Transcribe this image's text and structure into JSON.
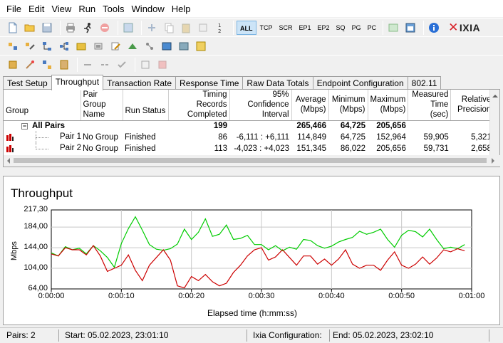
{
  "menu": [
    "File",
    "Edit",
    "View",
    "Run",
    "Tools",
    "Window",
    "Help"
  ],
  "toolbar_protocols": [
    "ALL",
    "TCP",
    "SCR",
    "EP1",
    "EP2",
    "SQ",
    "PG",
    "PC"
  ],
  "toolbar_icons_row1": [
    "new-file-icon",
    "open-folder-icon",
    "save-icon",
    "print-icon",
    "run-icon",
    "stop-icon",
    "refresh-icon",
    "add-pair-icon",
    "copy-icon",
    "paste-icon",
    "delete-icon",
    "numbering-icon"
  ],
  "toolbar_icons_row2": [
    "pair-group-icon",
    "edit-pair-icon",
    "network-icon",
    "hierarchy-icon",
    "chart-icon",
    "script-icon",
    "edit-script-icon",
    "endpoint-icon",
    "topology-icon",
    "filter-icon",
    "window-icon",
    "export-icon"
  ],
  "brand": "IXIA",
  "tabs": [
    "Test Setup",
    "Throughput",
    "Transaction Rate",
    "Response Time",
    "Raw Data Totals",
    "Endpoint Configuration",
    "802.11"
  ],
  "grid": {
    "headers": [
      "Group",
      "Pair Group Name",
      "Run Status",
      "Timing Records Completed",
      "95% Confidence Interval",
      "Average (Mbps)",
      "Minimum (Mbps)",
      "Maximum (Mbps)",
      "Measured Time (sec)",
      "Relative Precision"
    ],
    "summary": {
      "group": "All Pairs",
      "records": "199",
      "avg": "265,466",
      "min": "64,725",
      "max": "205,656"
    },
    "rows": [
      {
        "group": "Pair 1",
        "pair_group": "No Group",
        "status": "Finished",
        "records": "86",
        "ci": "-6,111 : +6,111",
        "avg": "114,849",
        "min": "64,725",
        "max": "152,964",
        "time": "59,905",
        "precision": "5,321"
      },
      {
        "group": "Pair 2",
        "pair_group": "No Group",
        "status": "Finished",
        "records": "113",
        "ci": "-4,023 : +4,023",
        "avg": "151,345",
        "min": "86,022",
        "max": "205,656",
        "time": "59,731",
        "precision": "2,658"
      }
    ]
  },
  "chart_data": {
    "type": "line",
    "title": "Throughput",
    "xlabel": "Elapsed time (h:mm:ss)",
    "ylabel": "Mbps",
    "ylim": [
      64.0,
      217.3
    ],
    "xlim": [
      0,
      60
    ],
    "yticks": [
      "217,30",
      "184,00",
      "144,00",
      "104,00",
      "64,00"
    ],
    "ytick_values": [
      217.3,
      184.0,
      144.0,
      104.0,
      64.0
    ],
    "xticks": [
      "0:00:00",
      "0:00:10",
      "0:00:20",
      "0:00:30",
      "0:00:40",
      "0:00:50",
      "0:01:00"
    ],
    "grid": true,
    "series": [
      {
        "color": "#00cc00",
        "x": [
          0,
          1,
          2,
          3,
          4,
          5,
          6,
          7,
          8,
          9,
          10,
          11,
          12,
          13,
          14,
          15,
          16,
          17,
          18,
          19,
          20,
          21,
          22,
          23,
          24,
          25,
          26,
          27,
          28,
          29,
          30,
          31,
          32,
          33,
          34,
          35,
          36,
          37,
          38,
          39,
          40,
          41,
          42,
          43,
          44,
          45,
          46,
          47,
          48,
          49,
          50,
          51,
          52,
          53,
          54,
          55,
          56,
          57,
          58,
          59
        ],
        "y": [
          134,
          128,
          146,
          140,
          143,
          132,
          148,
          138,
          125,
          106,
          152,
          181,
          204,
          178,
          150,
          141,
          139,
          142,
          151,
          180,
          160,
          174,
          200,
          166,
          170,
          188,
          160,
          162,
          168,
          150,
          150,
          140,
          148,
          138,
          145,
          141,
          160,
          158,
          148,
          143,
          147,
          155,
          160,
          164,
          176,
          170,
          174,
          180,
          160,
          145,
          168,
          178,
          175,
          165,
          180,
          160,
          142,
          145,
          142,
          150
        ]
      },
      {
        "color": "#cc0000",
        "x": [
          0,
          1,
          2,
          3,
          4,
          5,
          6,
          7,
          8,
          9,
          10,
          11,
          12,
          13,
          14,
          15,
          16,
          17,
          18,
          19,
          20,
          21,
          22,
          23,
          24,
          25,
          26,
          27,
          28,
          29,
          30,
          31,
          32,
          33,
          34,
          35,
          36,
          37,
          38,
          39,
          40,
          41,
          42,
          43,
          44,
          45,
          46,
          47,
          48,
          49,
          50,
          51,
          52,
          53,
          54,
          55,
          56,
          57,
          58,
          59
        ],
        "y": [
          132,
          128,
          144,
          140,
          140,
          130,
          148,
          128,
          98,
          104,
          110,
          130,
          100,
          80,
          110,
          125,
          140,
          120,
          70,
          66,
          88,
          80,
          92,
          78,
          70,
          75,
          96,
          110,
          128,
          140,
          144,
          120,
          126,
          140,
          125,
          110,
          128,
          128,
          112,
          122,
          110,
          122,
          140,
          112,
          104,
          110,
          110,
          100,
          120,
          136,
          110,
          104,
          112,
          126,
          112,
          124,
          140,
          136,
          142,
          138
        ]
      }
    ]
  },
  "status": {
    "pairs": "Pairs: 2",
    "start": "Start: 05.02.2023, 23:01:10",
    "config": "Ixia Configuration:",
    "end": "End: 05.02.2023, 23:02:10"
  }
}
